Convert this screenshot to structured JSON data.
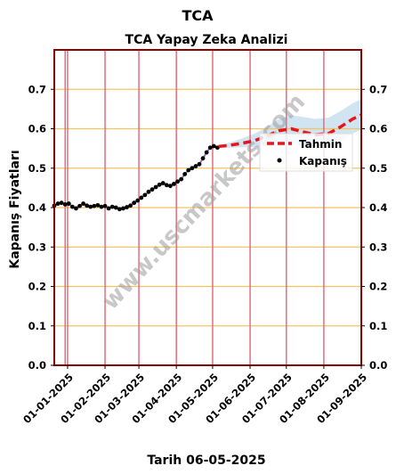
{
  "page_title": "TCA",
  "chart_data": {
    "type": "line",
    "title": "TCA Yapay Zeka Analizi",
    "ylabel": "Kapanış Fiyatları",
    "xlabel_prefix": "Tarih",
    "xlabel_date": "06-05-2025",
    "ylim": [
      0.0,
      0.8
    ],
    "yticks": [
      0.0,
      0.1,
      0.2,
      0.3,
      0.4,
      0.5,
      0.6,
      0.7
    ],
    "ytick_labels": [
      "0.0",
      "0.1",
      "0.2",
      "0.3",
      "0.4",
      "0.5",
      "0.6",
      "0.7"
    ],
    "xlim": [
      "2024-12-21",
      "2025-09-01"
    ],
    "xticks": [
      "2025-01-01",
      "2025-02-01",
      "2025-03-01",
      "2025-04-01",
      "2025-05-01",
      "2025-06-01",
      "2025-07-01",
      "2025-08-01",
      "2025-09-01"
    ],
    "xtick_labels": [
      "01-01-2025",
      "01-02-2025",
      "01-03-2025",
      "01-04-2025",
      "01-05-2025",
      "01-06-2025",
      "01-07-2025",
      "01-08-2025",
      "01-09-2025"
    ],
    "grid": true,
    "legend_position": "right",
    "watermark": "www.uscmarkets.com",
    "colors": {
      "close": "#000000",
      "forecast": "#e8141c",
      "band": "#a9cfe6",
      "vline": "#e36f7b",
      "hline": "#f5c261",
      "frame": "#8b0000",
      "trend": "#7a3aa0"
    },
    "series": [
      {
        "name": "Kapanış",
        "style": "points",
        "x": [
          "2024-12-21",
          "2024-12-24",
          "2024-12-27",
          "2024-12-30",
          "2025-01-02",
          "2025-01-05",
          "2025-01-08",
          "2025-01-11",
          "2025-01-14",
          "2025-01-17",
          "2025-01-20",
          "2025-01-23",
          "2025-01-26",
          "2025-01-29",
          "2025-02-01",
          "2025-02-04",
          "2025-02-07",
          "2025-02-10",
          "2025-02-13",
          "2025-02-16",
          "2025-02-19",
          "2025-02-22",
          "2025-02-25",
          "2025-02-28",
          "2025-03-03",
          "2025-03-06",
          "2025-03-09",
          "2025-03-12",
          "2025-03-15",
          "2025-03-18",
          "2025-03-21",
          "2025-03-24",
          "2025-03-27",
          "2025-03-30",
          "2025-04-02",
          "2025-04-05",
          "2025-04-08",
          "2025-04-11",
          "2025-04-14",
          "2025-04-17",
          "2025-04-20",
          "2025-04-23",
          "2025-04-26",
          "2025-04-29",
          "2025-05-02",
          "2025-05-05"
        ],
        "values": [
          0.405,
          0.41,
          0.412,
          0.408,
          0.41,
          0.402,
          0.398,
          0.404,
          0.41,
          0.405,
          0.402,
          0.404,
          0.406,
          0.402,
          0.404,
          0.398,
          0.402,
          0.4,
          0.396,
          0.398,
          0.401,
          0.405,
          0.412,
          0.418,
          0.425,
          0.432,
          0.44,
          0.446,
          0.452,
          0.458,
          0.462,
          0.457,
          0.455,
          0.46,
          0.466,
          0.472,
          0.485,
          0.495,
          0.5,
          0.505,
          0.51,
          0.525,
          0.54,
          0.552,
          0.556,
          0.552
        ]
      },
      {
        "name": "Tahmin",
        "style": "dashed",
        "x": [
          "2025-05-06",
          "2025-05-15",
          "2025-05-25",
          "2025-06-05",
          "2025-06-15",
          "2025-06-25",
          "2025-07-05",
          "2025-07-15",
          "2025-07-25",
          "2025-08-05",
          "2025-08-15",
          "2025-08-25",
          "2025-09-01"
        ],
        "values": [
          0.555,
          0.558,
          0.563,
          0.57,
          0.582,
          0.595,
          0.6,
          0.592,
          0.585,
          0.588,
          0.605,
          0.625,
          0.635
        ],
        "band_lower": [
          0.552,
          0.552,
          0.553,
          0.554,
          0.558,
          0.565,
          0.566,
          0.558,
          0.55,
          0.552,
          0.568,
          0.588,
          0.598
        ],
        "band_upper": [
          0.558,
          0.565,
          0.575,
          0.588,
          0.605,
          0.625,
          0.634,
          0.63,
          0.625,
          0.628,
          0.645,
          0.665,
          0.675
        ]
      }
    ]
  }
}
